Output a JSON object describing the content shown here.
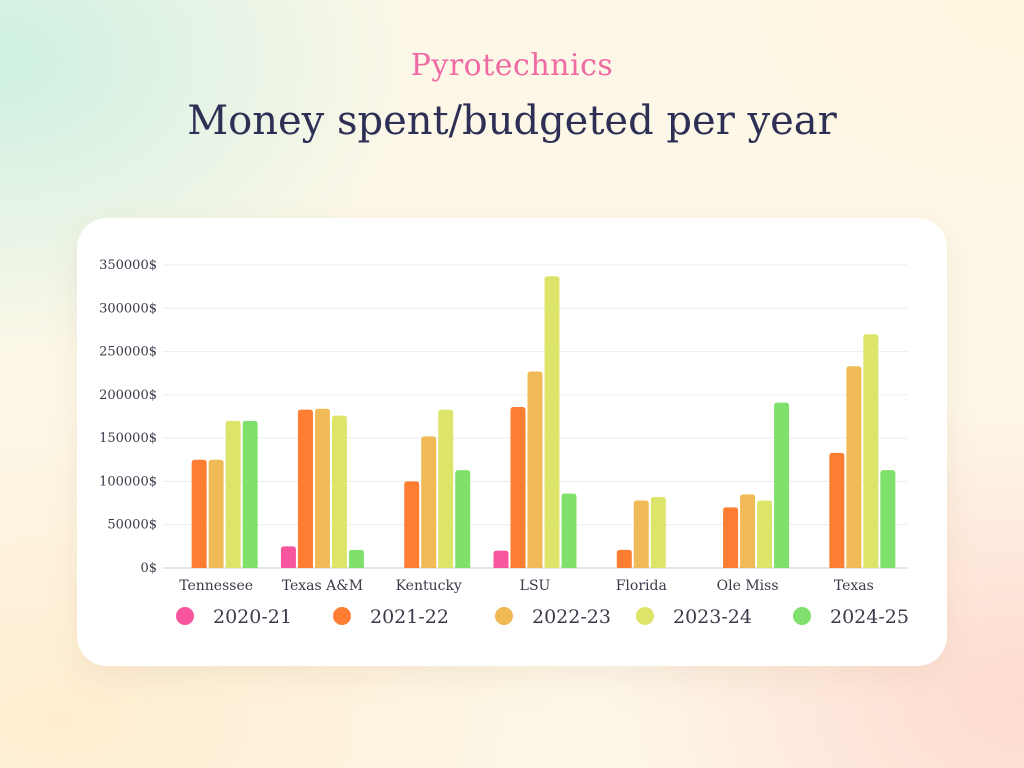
{
  "header": {
    "subtitle": "Pyrotechnics",
    "title": "Money spent/budgeted per year"
  },
  "chart_data": {
    "type": "bar",
    "title": "Money spent/budgeted per year",
    "subtitle": "Pyrotechnics",
    "categories": [
      "Tennessee",
      "Texas A&M",
      "Kentucky",
      "LSU",
      "Florida",
      "Ole Miss",
      "Texas"
    ],
    "ylim": [
      0,
      350000
    ],
    "yticks": [
      0,
      50000,
      100000,
      150000,
      200000,
      250000,
      300000,
      350000
    ],
    "ytick_labels": [
      "0$",
      "50000$",
      "100000$",
      "150000$",
      "200000$",
      "250000$",
      "300000$",
      "350000$"
    ],
    "grid": true,
    "legend_position": "bottom",
    "series": [
      {
        "name": "2020-21",
        "color": "#f7559e",
        "values": [
          0,
          25000,
          0,
          20000,
          0,
          0,
          0
        ]
      },
      {
        "name": "2021-22",
        "color": "#fd7e32",
        "values": [
          125000,
          183000,
          100000,
          186000,
          21000,
          70000,
          133000
        ]
      },
      {
        "name": "2022-23",
        "color": "#f0bb57",
        "values": [
          125000,
          184000,
          152000,
          227000,
          78000,
          85000,
          233000
        ]
      },
      {
        "name": "2023-24",
        "color": "#dce56a",
        "values": [
          170000,
          176000,
          183000,
          337000,
          82000,
          78000,
          270000
        ]
      },
      {
        "name": "2024-25",
        "color": "#80e06c",
        "values": [
          170000,
          21000,
          113000,
          86000,
          0,
          191000,
          113000
        ]
      }
    ]
  }
}
